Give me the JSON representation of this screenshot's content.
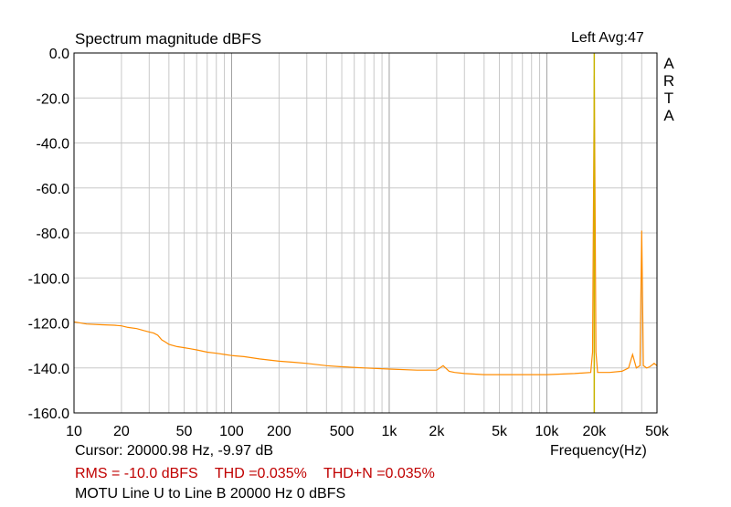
{
  "chart_data": {
    "type": "line",
    "title": "Spectrum magnitude dBFS",
    "channel_label": "Left  Avg:47",
    "brand_letters": [
      "A",
      "R",
      "T",
      "A"
    ],
    "xlabel": "Frequency(Hz)",
    "x_scale": "log",
    "xlim": [
      10,
      50000
    ],
    "ylim": [
      -160,
      0
    ],
    "x_ticks": [
      {
        "value": 10,
        "label": "10"
      },
      {
        "value": 20,
        "label": "20"
      },
      {
        "value": 50,
        "label": "50"
      },
      {
        "value": 100,
        "label": "100"
      },
      {
        "value": 200,
        "label": "200"
      },
      {
        "value": 500,
        "label": "500"
      },
      {
        "value": 1000,
        "label": "1k"
      },
      {
        "value": 2000,
        "label": "2k"
      },
      {
        "value": 5000,
        "label": "5k"
      },
      {
        "value": 10000,
        "label": "10k"
      },
      {
        "value": 20000,
        "label": "20k"
      },
      {
        "value": 50000,
        "label": "50k"
      }
    ],
    "y_ticks": [
      {
        "value": 0,
        "label": "0.0"
      },
      {
        "value": -20,
        "label": "-20.0"
      },
      {
        "value": -40,
        "label": "-40.0"
      },
      {
        "value": -60,
        "label": "-60.0"
      },
      {
        "value": -80,
        "label": "-80.0"
      },
      {
        "value": -100,
        "label": "-100.0"
      },
      {
        "value": -120,
        "label": "-120.0"
      },
      {
        "value": -140,
        "label": "-140.0"
      },
      {
        "value": -160,
        "label": "-160.0"
      }
    ],
    "grid": true,
    "cursor_text": "Cursor: 20000.98 Hz, -9.97 dB",
    "stats": {
      "rms": "RMS =  -10.0 dBFS",
      "thd": "THD =0.035%",
      "thdn": "THD+N =0.035%"
    },
    "caption": "MOTU Line U to Line B 20000 Hz 0 dBFS",
    "colors": {
      "series": "#ff8c00",
      "cursor": "#c8b400",
      "grid": "#c8c8c8",
      "grid_major": "#a0a0a0",
      "stats_text": "#c00000"
    },
    "series": [
      {
        "x": [
          10,
          12,
          15,
          18,
          20,
          22,
          25,
          28,
          30,
          32,
          34,
          36,
          38,
          40,
          45,
          50,
          55,
          60,
          70,
          80,
          90,
          100,
          120,
          150,
          200,
          250,
          300,
          400,
          500,
          700,
          1000,
          1500,
          2000,
          2200,
          2400,
          2600,
          3000,
          4000,
          5000,
          7000,
          10000,
          15000,
          19000,
          19500,
          20000,
          20500,
          21000,
          25000,
          30000,
          33000,
          35000,
          37000,
          39000,
          40000,
          41000,
          43000,
          45000,
          48000,
          50000
        ],
        "y": [
          -119.5,
          -120.5,
          -120.8,
          -121,
          -121.3,
          -122,
          -122.5,
          -123.5,
          -124,
          -124.5,
          -125.5,
          -127.5,
          -128.5,
          -129.5,
          -130.5,
          -131,
          -131.5,
          -132,
          -133,
          -133.5,
          -134,
          -134.5,
          -135,
          -136,
          -137,
          -137.5,
          -138,
          -139,
          -139.5,
          -140,
          -140.5,
          -141,
          -141,
          -139,
          -141.5,
          -142,
          -142.5,
          -143,
          -143,
          -143,
          -143,
          -142.5,
          -142,
          -133,
          -9.97,
          -133,
          -142,
          -142,
          -141.5,
          -140,
          -134,
          -140,
          -139,
          -79,
          -139,
          -140,
          -139.5,
          -138,
          -139
        ]
      }
    ]
  }
}
